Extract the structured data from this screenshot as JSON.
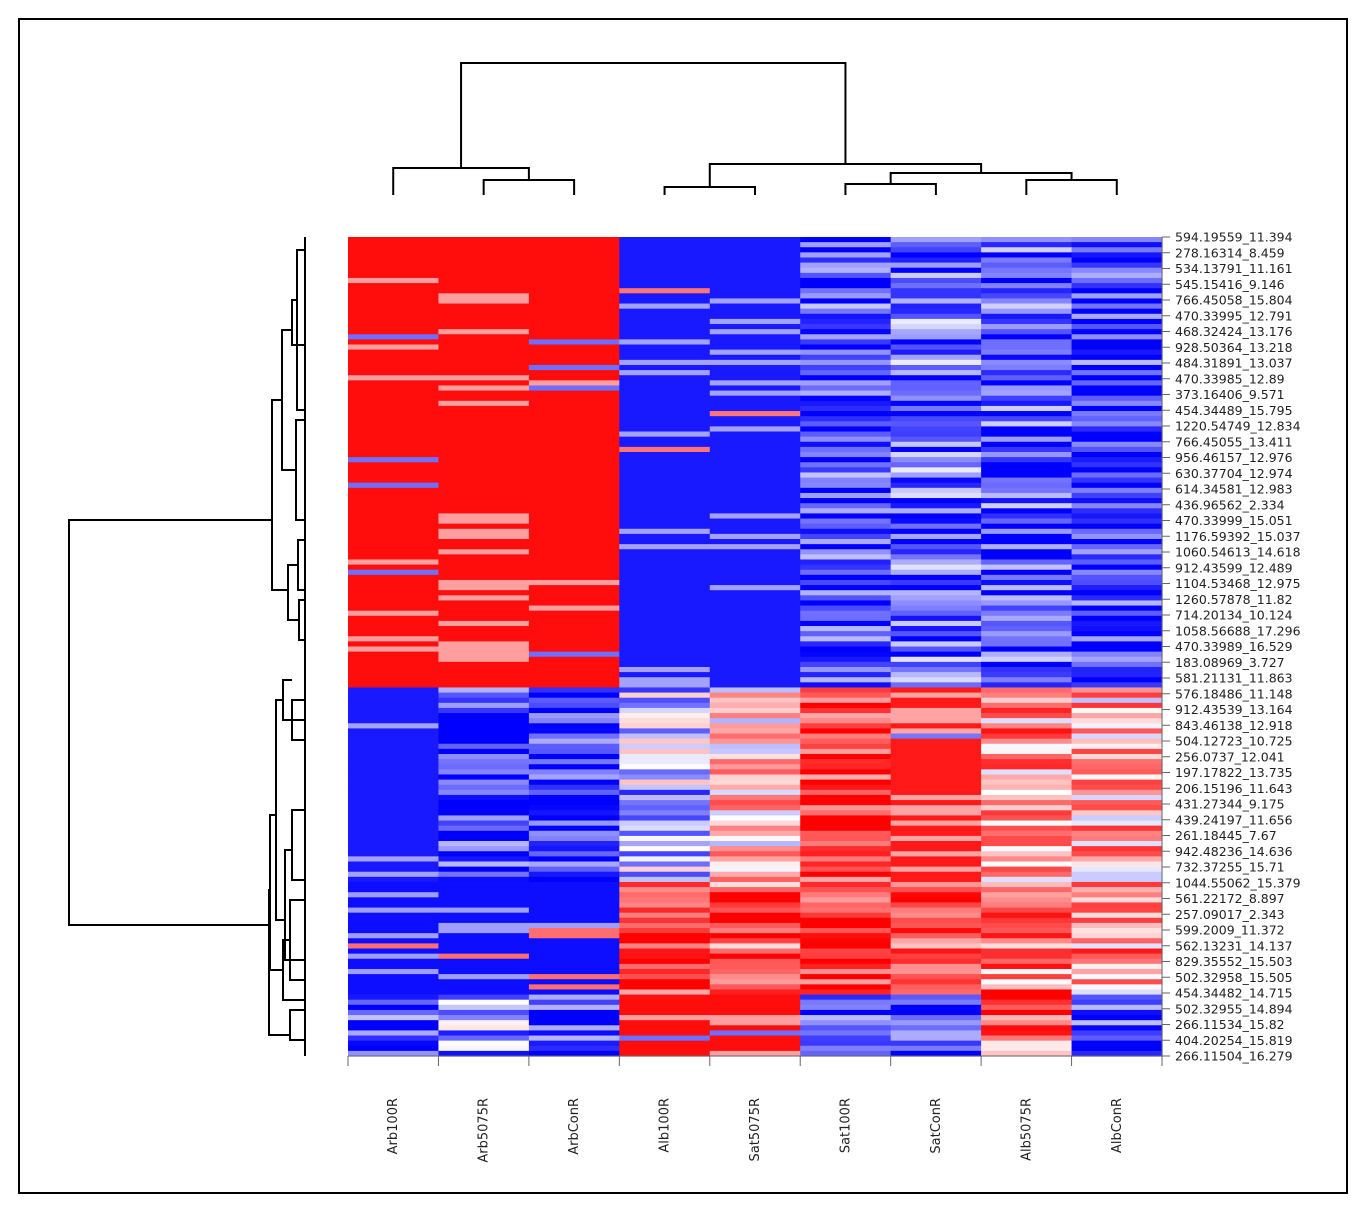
{
  "chart_data": {
    "type": "heatmap",
    "title": "",
    "xlabel": "",
    "ylabel": "",
    "legend": "none",
    "colors": {
      "low": "#0000ff",
      "mid": "#ffffff",
      "high": "#ff0000"
    },
    "columns": [
      "Arb100R",
      "Arb5075R",
      "ArbConR",
      "Alb100R",
      "Sat5075R",
      "Sat100R",
      "SatConR",
      "Alb5075R",
      "AlbConR"
    ],
    "row_labels": [
      "594.19559_11.394",
      "278.16314_8.459",
      "534.13791_11.161",
      "545.15416_9.146",
      "766.45058_15.804",
      "470.33995_12.791",
      "468.32424_13.176",
      "928.50364_13.218",
      "484.31891_13.037",
      "470.33985_12.89",
      "373.16406_9.571",
      "454.34489_15.795",
      "1220.54749_12.834",
      "766.45055_13.411",
      "956.46157_12.976",
      "630.37704_12.974",
      "614.34581_12.983",
      "436.96562_2.334",
      "470.33999_15.051",
      "1176.59392_15.037",
      "1060.54613_14.618",
      "912.43599_12.489",
      "1104.53468_12.975",
      "1260.57878_11.82",
      "714.20134_10.124",
      "1058.56688_17.296",
      "470.33989_16.529",
      "183.08969_3.727",
      "581.21131_11.863",
      "576.18486_11.148",
      "912.43539_13.164",
      "843.46138_12.918",
      "504.12723_10.725",
      "256.0737_12.041",
      "197.17822_13.735",
      "206.15196_11.643",
      "431.27344_9.175",
      "439.24197_11.656",
      "261.18445_7.67",
      "942.48236_14.636",
      "732.37255_15.71",
      "1044.55062_15.379",
      "561.22172_8.897",
      "257.09017_2.343",
      "599.2009_11.372",
      "562.13231_14.137",
      "829.35552_15.503",
      "502.32958_15.505",
      "454.34482_14.715",
      "502.32955_14.894",
      "266.11534_15.82",
      "404.20254_15.819",
      "266.11504_16.279"
    ],
    "cluster_blocks": [
      {
        "rows": "594.19559_11.394 – 576.18486_11.148",
        "values": [
          0.95,
          0.95,
          0.95,
          -0.9,
          -0.9,
          -0.75,
          -0.6,
          -0.7,
          -0.8
        ]
      },
      {
        "rows": "912.43539_13.164 – 561.22172_8.897",
        "values": [
          -0.9,
          -0.8,
          -0.85,
          -0.3,
          0.2,
          0.85,
          0.9,
          0.4,
          0.3
        ]
      },
      {
        "rows": "257.09017_2.343 – 502.32955_14.894",
        "values": [
          -0.95,
          -0.95,
          -0.95,
          0.8,
          0.6,
          0.85,
          0.7,
          0.5,
          0.4
        ]
      },
      {
        "rows": "266.11534_15.82 – 266.11504_16.279",
        "values": [
          -0.75,
          -0.4,
          -0.8,
          0.95,
          0.95,
          -0.8,
          -0.8,
          0.6,
          -0.8
        ]
      }
    ],
    "column_dendrogram": "((Arb100R,(Arb5075R,ArbConR)),((Alb100R,Sat5075R),((Sat100R,SatConR),(Alb5075R,AlbConR))))",
    "row_dendrogram": "two main clusters: rows 1–30 and rows 31–53"
  }
}
